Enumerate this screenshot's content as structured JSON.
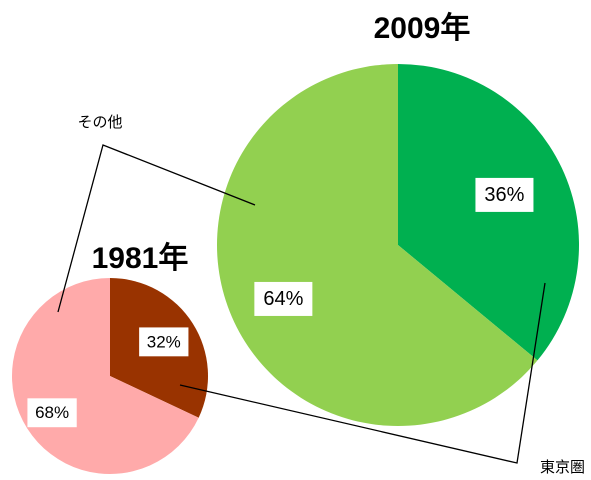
{
  "chart_data": [
    {
      "type": "pie",
      "title": "2009年",
      "categories": [
        "東京圏",
        "その他"
      ],
      "values": [
        36,
        64
      ],
      "value_labels": [
        "36%",
        "64%"
      ],
      "colors": [
        "#00b050",
        "#92d050"
      ]
    },
    {
      "type": "pie",
      "title": "1981年",
      "categories": [
        "東京圏",
        "その他"
      ],
      "values": [
        32,
        68
      ],
      "value_labels": [
        "32%",
        "68%"
      ],
      "colors": [
        "#993300",
        "#ffaaaa"
      ]
    }
  ]
}
